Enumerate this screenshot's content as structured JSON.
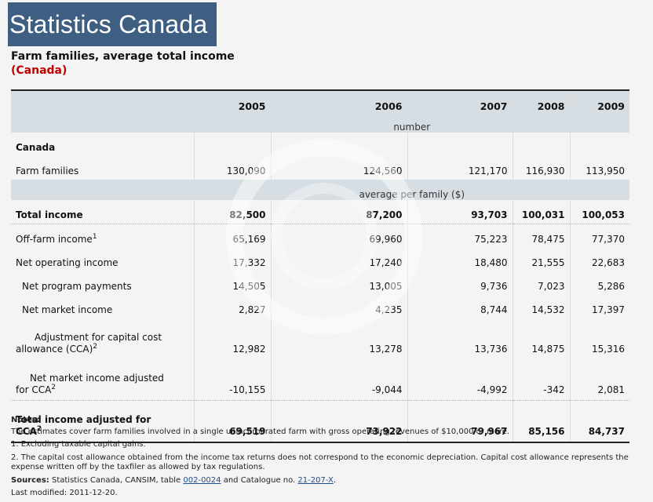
{
  "header": {
    "banner": "Statistics Canada",
    "title": "Farm families, average total income",
    "subtitle": "(Canada)"
  },
  "table": {
    "years": [
      "2005",
      "2006",
      "2007",
      "2008",
      "2009"
    ],
    "unit_number": "number",
    "unit_avg": "average per family ($)",
    "section_canada": "Canada",
    "rows": {
      "farm_families": {
        "label": "Farm families",
        "values": [
          "130,090",
          "124,560",
          "121,170",
          "116,930",
          "113,950"
        ]
      },
      "total_income": {
        "label": "Total income",
        "values": [
          "82,500",
          "87,200",
          "93,703",
          "100,031",
          "100,053"
        ]
      },
      "off_farm": {
        "label": "Off-farm income",
        "sup": "1",
        "values": [
          "65,169",
          "69,960",
          "75,223",
          "78,475",
          "77,370"
        ]
      },
      "net_operating": {
        "label": "Net operating income",
        "values": [
          "17,332",
          "17,240",
          "18,480",
          "21,555",
          "22,683"
        ]
      },
      "net_program": {
        "label": "Net program payments",
        "values": [
          "14,505",
          "13,005",
          "9,736",
          "7,023",
          "5,286"
        ]
      },
      "net_market": {
        "label": "Net market income",
        "values": [
          "2,827",
          "4,235",
          "8,744",
          "14,532",
          "17,397"
        ]
      },
      "cca": {
        "label_line1": "Adjustment for capital cost",
        "label_line2": "allowance (CCA)",
        "sup": "2",
        "values": [
          "12,982",
          "13,278",
          "13,736",
          "14,875",
          "15,316"
        ]
      },
      "net_market_adj": {
        "label_line1": "Net market income adjusted",
        "label_line2": "for CCA",
        "sup": "2",
        "values": [
          "-10,155",
          "-9,044",
          "-4,992",
          "-342",
          "2,081"
        ]
      },
      "total_adj": {
        "label_line1": "Total income adjusted for",
        "label_line2": "CCA",
        "sup": "2",
        "values": [
          "69,519",
          "73,922",
          "79,967",
          "85,156",
          "84,737"
        ]
      }
    }
  },
  "notes": {
    "heading": "Notes:",
    "line1": "The estimates cover farm families involved in a single unincorporated farm with gross operating revenues of $10,000 or more.",
    "line2": "1. Excluding taxable capital gains.",
    "line3": "2. The capital cost allowance obtained from the income tax returns does not correspond to the economic depreciation. Capital cost allowance represents the expense written off by the taxfiler as allowed by tax regulations.",
    "sources_label": "Sources:",
    "sources_text1": " Statistics Canada, CANSIM, table ",
    "sources_link1": "002-0024",
    "sources_text2": " and Catalogue no. ",
    "sources_link2": "21-207-X",
    "sources_text3": ".",
    "last_modified": "Last modified: 2011-12-20."
  }
}
